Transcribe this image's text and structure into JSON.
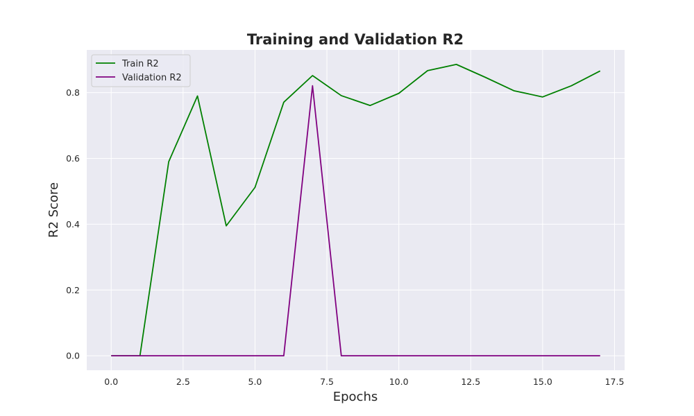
{
  "chart_data": {
    "type": "line",
    "title": "Training and Validation R2",
    "xlabel": "Epochs",
    "ylabel": "R2 Score",
    "xlim": [
      -0.85,
      17.85
    ],
    "ylim": [
      -0.044,
      0.93
    ],
    "xticks": [
      0.0,
      2.5,
      5.0,
      7.5,
      10.0,
      12.5,
      15.0,
      17.5
    ],
    "xtick_labels": [
      "0.0",
      "2.5",
      "5.0",
      "7.5",
      "10.0",
      "12.5",
      "15.0",
      "17.5"
    ],
    "yticks": [
      0.0,
      0.2,
      0.4,
      0.6,
      0.8
    ],
    "ytick_labels": [
      "0.0",
      "0.2",
      "0.4",
      "0.6",
      "0.8"
    ],
    "grid": true,
    "legend_position": "top-left",
    "background": "#eaeaf2",
    "x": [
      0,
      1,
      2,
      3,
      4,
      5,
      6,
      7,
      8,
      9,
      10,
      11,
      12,
      13,
      14,
      15,
      16,
      17
    ],
    "series": [
      {
        "name": "Train R2",
        "color": "#008000",
        "values": [
          0.0,
          0.0,
          0.59,
          0.79,
          0.395,
          0.512,
          0.771,
          0.852,
          0.791,
          0.761,
          0.798,
          0.867,
          0.886,
          0.847,
          0.806,
          0.787,
          0.821,
          0.866
        ]
      },
      {
        "name": "Validation R2",
        "color": "#800080",
        "values": [
          0.0,
          0.0,
          0.0,
          0.0,
          0.0,
          0.0,
          0.0,
          0.821,
          0.0,
          0.0,
          0.0,
          0.0,
          0.0,
          0.0,
          0.0,
          0.0,
          0.0,
          0.0
        ]
      }
    ]
  }
}
